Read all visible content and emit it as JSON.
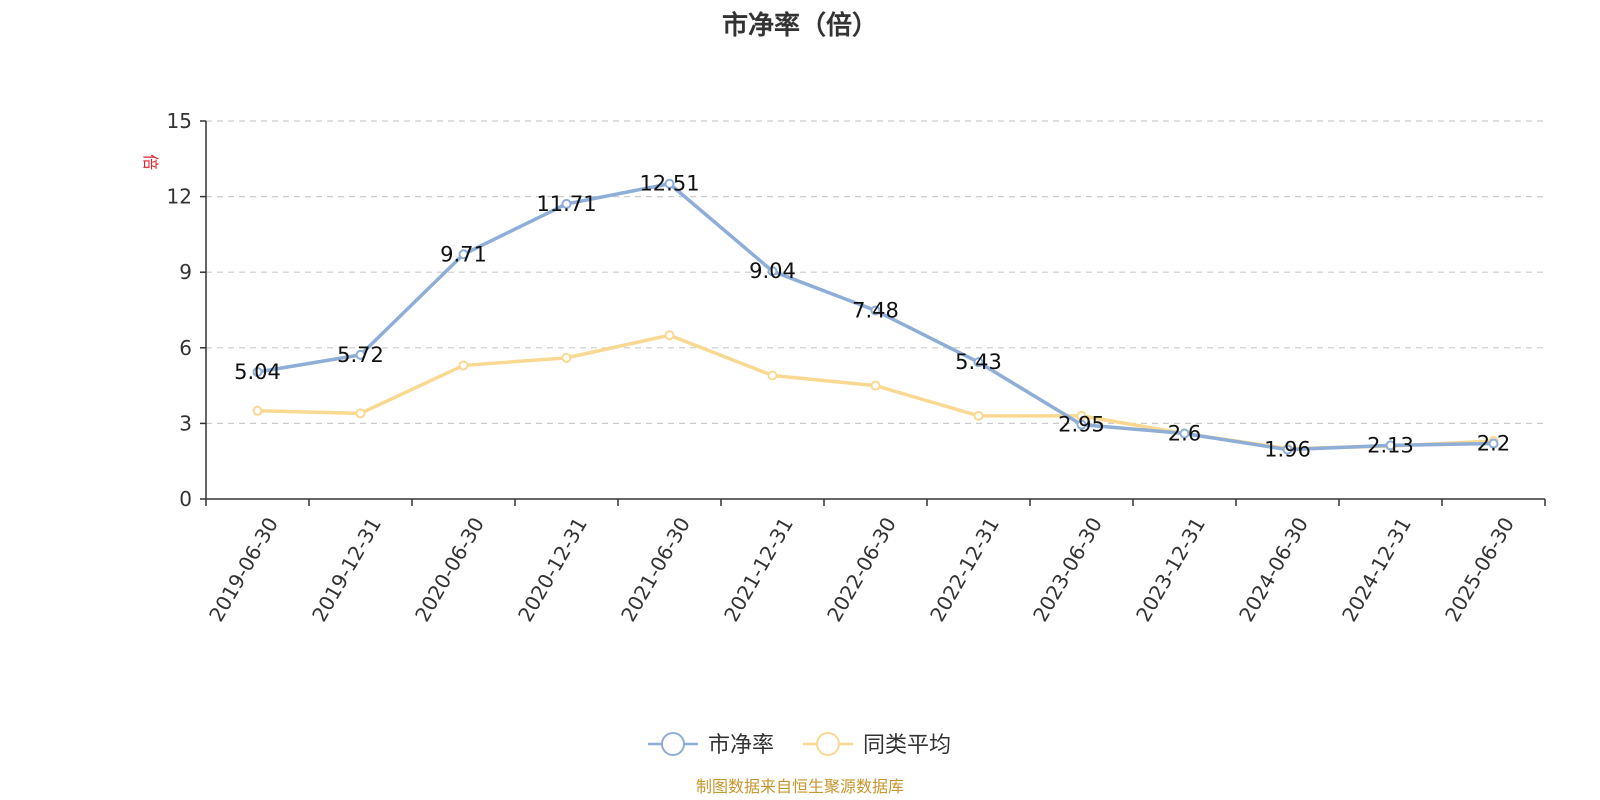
{
  "chart_data": {
    "type": "line",
    "title": "市净率（倍）",
    "y_unit_label": "倍",
    "categories": [
      "2019-06-30",
      "2019-12-31",
      "2020-06-30",
      "2020-12-31",
      "2021-06-30",
      "2021-12-31",
      "2022-06-30",
      "2022-12-31",
      "2023-06-30",
      "2023-12-31",
      "2024-06-30",
      "2024-12-31",
      "2025-06-30"
    ],
    "ylim": [
      0,
      15
    ],
    "yticks": [
      0,
      3,
      6,
      9,
      12,
      15
    ],
    "grid": true,
    "legend_position": "bottom-center",
    "series": [
      {
        "name": "市净率",
        "color": "#8eaed8",
        "values": [
          5.04,
          5.72,
          9.71,
          11.71,
          12.51,
          9.04,
          7.48,
          5.43,
          2.95,
          2.6,
          1.96,
          2.13,
          2.2
        ],
        "labels": [
          "5.04",
          "5.72",
          "9.71",
          "11.71",
          "12.51",
          "9.04",
          "7.48",
          "5.43",
          "2.95",
          "2.6",
          "1.96",
          "2.13",
          "2.2"
        ]
      },
      {
        "name": "同类平均",
        "color": "#f9d992",
        "values": [
          3.5,
          3.4,
          5.3,
          5.6,
          6.5,
          4.9,
          4.5,
          3.3,
          3.3,
          2.6,
          2.0,
          2.1,
          2.3
        ]
      }
    ],
    "source": "制图数据来自恒生聚源数据库"
  }
}
